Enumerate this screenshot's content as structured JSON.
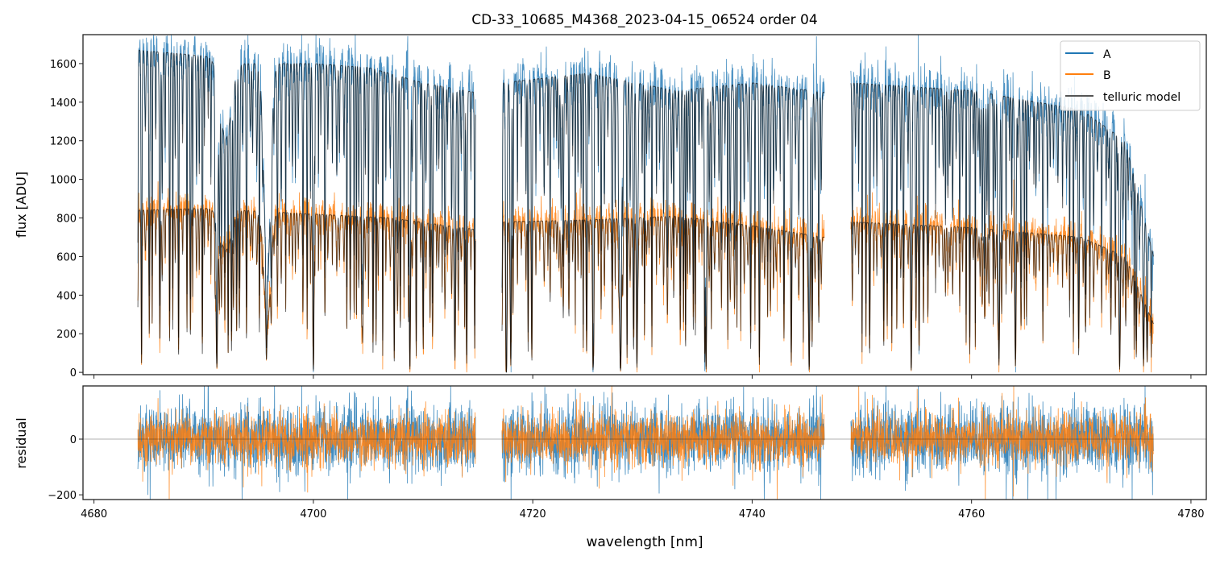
{
  "chart_data": [
    {
      "type": "line",
      "title": "CD-33_10685_M4368_2023-04-15_06524  order 04",
      "xlabel": "",
      "ylabel": "flux [ADU]",
      "xlim": [
        4679.0,
        4781.4
      ],
      "ylim": [
        -12,
        1750
      ],
      "yticks": [
        0,
        200,
        400,
        600,
        800,
        1000,
        1200,
        1400,
        1600
      ],
      "xticks": [
        4680,
        4700,
        4720,
        4740,
        4760,
        4780
      ],
      "legend": {
        "placement": "top-right",
        "entries": [
          "A",
          "B",
          "telluric model"
        ]
      },
      "segments_nm": [
        [
          4684.0,
          4714.8
        ],
        [
          4717.2,
          4746.6
        ],
        [
          4749.0,
          4776.6
        ]
      ],
      "series": [
        {
          "name": "A",
          "color": "#1f77b4",
          "continuum": [
            [
              4684,
              1670
            ],
            [
              4690,
              1640
            ],
            [
              4693,
              1600
            ],
            [
              4700,
              1600
            ],
            [
              4705,
              1580
            ],
            [
              4710,
              1500
            ],
            [
              4714.8,
              1450
            ],
            [
              4717.2,
              1500
            ],
            [
              4725,
              1550
            ],
            [
              4733,
              1460
            ],
            [
              4740,
              1500
            ],
            [
              4746.6,
              1450
            ],
            [
              4749,
              1500
            ],
            [
              4760,
              1460
            ],
            [
              4770,
              1360
            ],
            [
              4774,
              1200
            ],
            [
              4776.6,
              600
            ]
          ]
        },
        {
          "name": "B",
          "color": "#ff7f0e",
          "continuum": [
            [
              4684,
              840
            ],
            [
              4690,
              850
            ],
            [
              4700,
              820
            ],
            [
              4707,
              800
            ],
            [
              4714.8,
              740
            ],
            [
              4717.2,
              780
            ],
            [
              4725,
              790
            ],
            [
              4733,
              810
            ],
            [
              4740,
              760
            ],
            [
              4746.6,
              700
            ],
            [
              4749,
              780
            ],
            [
              4760,
              750
            ],
            [
              4770,
              700
            ],
            [
              4774,
              600
            ],
            [
              4776.6,
              250
            ]
          ]
        },
        {
          "name": "telluric model",
          "color": "#000000"
        }
      ],
      "telluric_lines_nm_depth_width": [
        [
          4691.2,
          0.97,
          0.08
        ],
        [
          4692.0,
          0.25,
          0.5
        ],
        [
          4695.8,
          0.7,
          0.3
        ],
        [
          4700.0,
          0.99,
          0.06
        ],
        [
          4704.5,
          0.8,
          0.05
        ],
        [
          4708.8,
          0.98,
          0.06
        ],
        [
          4712.9,
          0.9,
          0.06
        ],
        [
          4717.6,
          0.99,
          0.06
        ],
        [
          4718.0,
          0.95,
          0.05
        ],
        [
          4725.5,
          0.98,
          0.06
        ],
        [
          4728.0,
          0.99,
          0.1
        ],
        [
          4729.5,
          0.97,
          0.06
        ],
        [
          4735.8,
          0.98,
          0.06
        ],
        [
          4745.2,
          0.98,
          0.07
        ],
        [
          4754.5,
          0.98,
          0.06
        ],
        [
          4762.5,
          0.95,
          0.06
        ],
        [
          4764.0,
          0.95,
          0.06
        ],
        [
          4773.5,
          0.97,
          0.06
        ]
      ]
    },
    {
      "type": "line",
      "title": "",
      "xlabel": "wavelength [nm]",
      "ylabel": "residual",
      "xlim": [
        4679.0,
        4781.4
      ],
      "ylim": [
        -217,
        191
      ],
      "yticks": [
        -200,
        0
      ],
      "xticks": [
        4680,
        4700,
        4720,
        4740,
        4760,
        4780
      ],
      "series": [
        {
          "name": "A",
          "color": "#1f77b4",
          "noise_rms": 60
        },
        {
          "name": "B",
          "color": "#ff7f0e",
          "noise_rms": 45
        }
      ]
    }
  ]
}
